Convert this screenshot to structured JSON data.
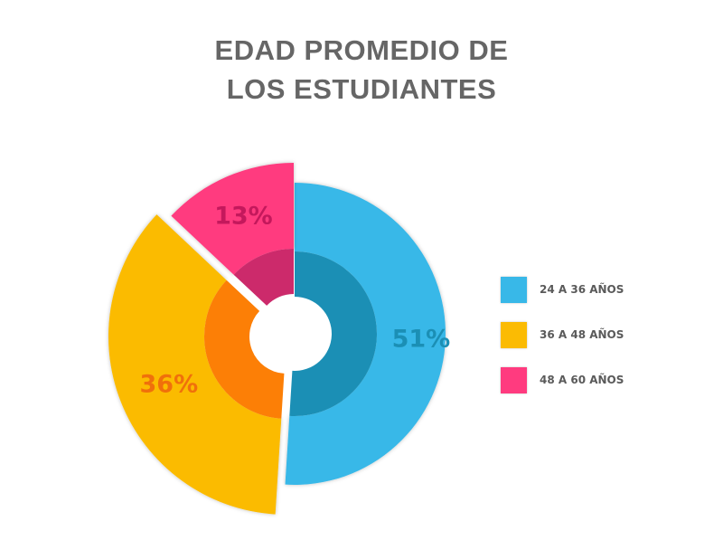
{
  "chart_data": {
    "type": "pie",
    "style": "exploded donut",
    "title_lines": [
      "EDAD PROMEDIO DE",
      "LOS ESTUDIANTES"
    ],
    "slices": [
      {
        "label": "24 A 36 AÑOS",
        "value": 51,
        "display": "51%",
        "color": "#38b8e8",
        "inner_color": "#1b8fb5",
        "label_color": "#1b8fb5"
      },
      {
        "label": "36 A 48 AÑOS",
        "value": 36,
        "display": "36%",
        "color": "#fbbb03",
        "inner_color": "#fc7f06",
        "label_color": "#f0700b"
      },
      {
        "label": "48 A 60 AÑOS",
        "value": 13,
        "display": "13%",
        "color": "#ff3b7f",
        "inner_color": "#cc2a6b",
        "label_color": "#c4185c"
      }
    ],
    "legend_position": "right"
  }
}
